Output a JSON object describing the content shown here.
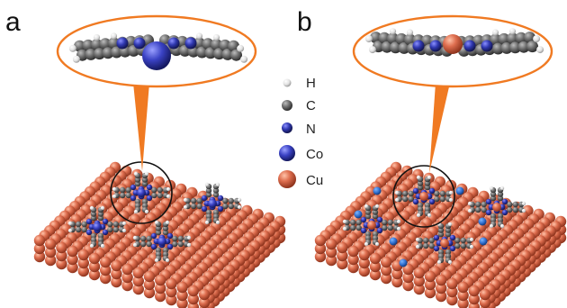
{
  "figure": {
    "panel_a": {
      "letter": "a"
    },
    "panel_b": {
      "letter": "b"
    },
    "legend": [
      {
        "label": "H",
        "color": "#e6e6e6",
        "icon": "hydrogen-atom-sphere"
      },
      {
        "label": "C",
        "color": "#6b6b6b",
        "icon": "carbon-atom-sphere"
      },
      {
        "label": "N",
        "color": "#2b2f9e",
        "icon": "nitrogen-atom-sphere"
      },
      {
        "label": "Co",
        "color": "#3a40b8",
        "icon": "cobalt-atom-sphere"
      },
      {
        "label": "Cu",
        "color": "#d9684a",
        "icon": "copper-atom-sphere"
      }
    ],
    "colors": {
      "copper": "#d9684a",
      "copper_light": "#f29c7c",
      "copper_dark": "#9c3a22",
      "carbon": "#6b6b6b",
      "hydrogen": "#e6e6e6",
      "nitrogen": "#2b2f9e",
      "cobalt": "#3a40b8",
      "callout": "#f07a22",
      "highlight_circle": "#111111"
    }
  }
}
